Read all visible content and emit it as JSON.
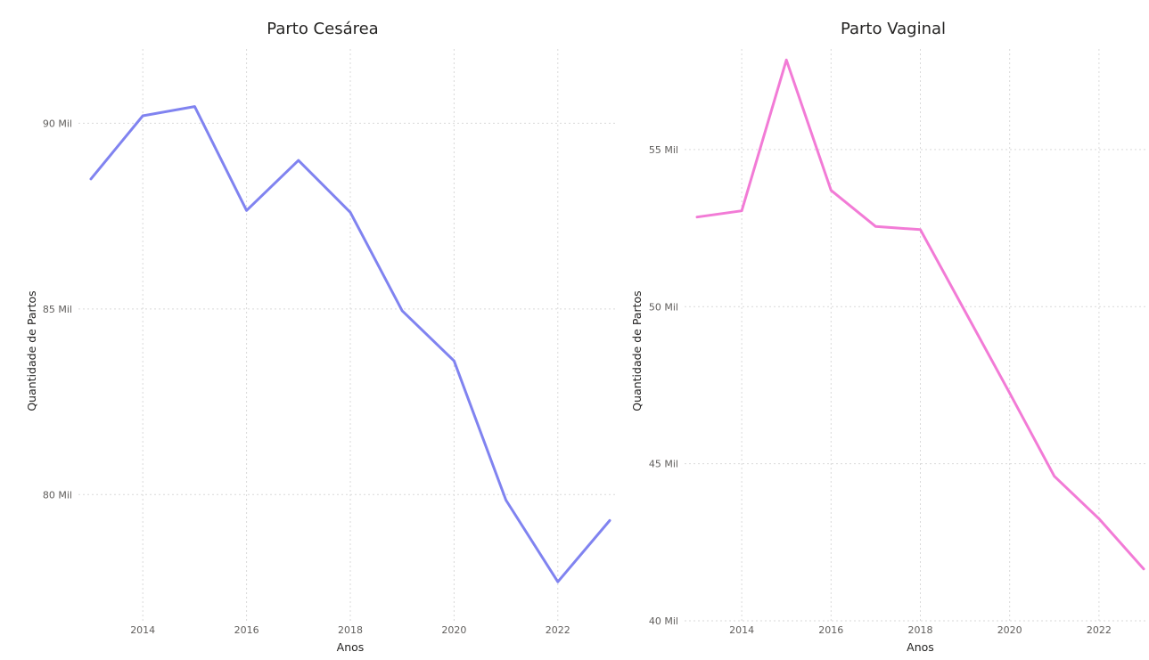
{
  "chart_data": [
    {
      "type": "line",
      "title": "Parto Cesárea",
      "xlabel": "Anos",
      "ylabel": "Quantidade de Partos",
      "x": [
        2013,
        2014,
        2015,
        2016,
        2017,
        2018,
        2019,
        2020,
        2021,
        2022,
        2023
      ],
      "xlim": [
        2013,
        2023
      ],
      "ylim": [
        76600,
        92000
      ],
      "xticks": [
        2014,
        2016,
        2018,
        2020,
        2022
      ],
      "yticks": [
        {
          "value": 80000,
          "label": "80 Mil"
        },
        {
          "value": 85000,
          "label": "85 Mil"
        },
        {
          "value": 90000,
          "label": "90 Mil"
        }
      ],
      "series": [
        {
          "color": "#8083f0",
          "values": [
            88500,
            90200,
            90450,
            87650,
            89000,
            87600,
            84950,
            83600,
            79850,
            77650,
            79300
          ]
        }
      ],
      "grid": true,
      "legend": "none"
    },
    {
      "type": "line",
      "title": "Parto Vaginal",
      "xlabel": "Anos",
      "ylabel": "Quantidade de Partos",
      "x": [
        2013,
        2014,
        2015,
        2016,
        2017,
        2018,
        2019,
        2020,
        2021,
        2022,
        2023
      ],
      "xlim": [
        2013,
        2023
      ],
      "ylim": [
        40000,
        58200
      ],
      "xticks": [
        2014,
        2016,
        2018,
        2020,
        2022
      ],
      "yticks": [
        {
          "value": 40000,
          "label": "40 Mil"
        },
        {
          "value": 45000,
          "label": "45 Mil"
        },
        {
          "value": 50000,
          "label": "50 Mil"
        },
        {
          "value": 55000,
          "label": "55 Mil"
        }
      ],
      "series": [
        {
          "color": "#f27bd6",
          "values": [
            52850,
            53050,
            57850,
            53700,
            52550,
            52450,
            49850,
            47250,
            44600,
            43250,
            41650
          ]
        }
      ],
      "grid": true,
      "legend": "none"
    }
  ]
}
